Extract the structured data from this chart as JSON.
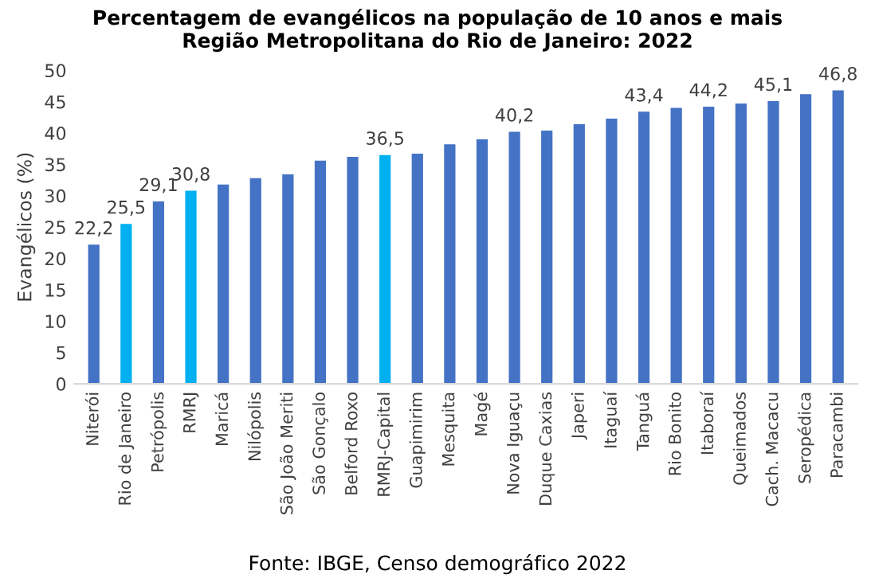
{
  "chart_data": {
    "type": "bar",
    "title": "Percentagem de evangélicos na população de 10 anos e mais\nRegião Metropolitana do Rio de Janeiro: 2022",
    "categories": [
      "Niterói",
      "Rio de Janeiro",
      "Petrópolis",
      "RMRJ",
      "Maricá",
      "Nilópolis",
      "São João Meriti",
      "São Gonçalo",
      "Belford Roxo",
      "RMRJ-Capital",
      "Guapimirim",
      "Mesquita",
      "Magé",
      "Nova Iguaçu",
      "Duque Caxias",
      "Japeri",
      "Itaguaí",
      "Tanguá",
      "Rio Bonito",
      "Itaboraí",
      "Queimados",
      "Cach. Macacu",
      "Seropédica",
      "Paracambi"
    ],
    "values": [
      22.2,
      25.5,
      29.1,
      30.8,
      31.8,
      32.8,
      33.4,
      35.6,
      36.2,
      36.5,
      36.7,
      38.2,
      39.0,
      40.2,
      40.4,
      41.4,
      42.3,
      43.4,
      44.0,
      44.2,
      44.7,
      45.1,
      46.2,
      46.8
    ],
    "value_labels": [
      "22,2",
      "25,5",
      "29,1",
      "30,8",
      null,
      null,
      null,
      null,
      null,
      "36,5",
      null,
      null,
      null,
      "40,2",
      null,
      null,
      null,
      "43,4",
      null,
      "44,2",
      null,
      "45,1",
      null,
      "46,8"
    ],
    "colors": [
      "#4472c4",
      "#00b0f0",
      "#4472c4",
      "#00b0f0",
      "#4472c4",
      "#4472c4",
      "#4472c4",
      "#4472c4",
      "#4472c4",
      "#00b0f0",
      "#4472c4",
      "#4472c4",
      "#4472c4",
      "#4472c4",
      "#4472c4",
      "#4472c4",
      "#4472c4",
      "#4472c4",
      "#4472c4",
      "#4472c4",
      "#4472c4",
      "#4472c4",
      "#4472c4",
      "#4472c4"
    ],
    "ylabel": "Evangélicos (%)",
    "ylim": [
      0,
      50
    ],
    "yticks": [
      0,
      5,
      10,
      15,
      20,
      25,
      30,
      35,
      40,
      45,
      50
    ],
    "grid": false,
    "annotations": [
      "Fonte: IBGE, Censo demográfico 2022"
    ]
  }
}
